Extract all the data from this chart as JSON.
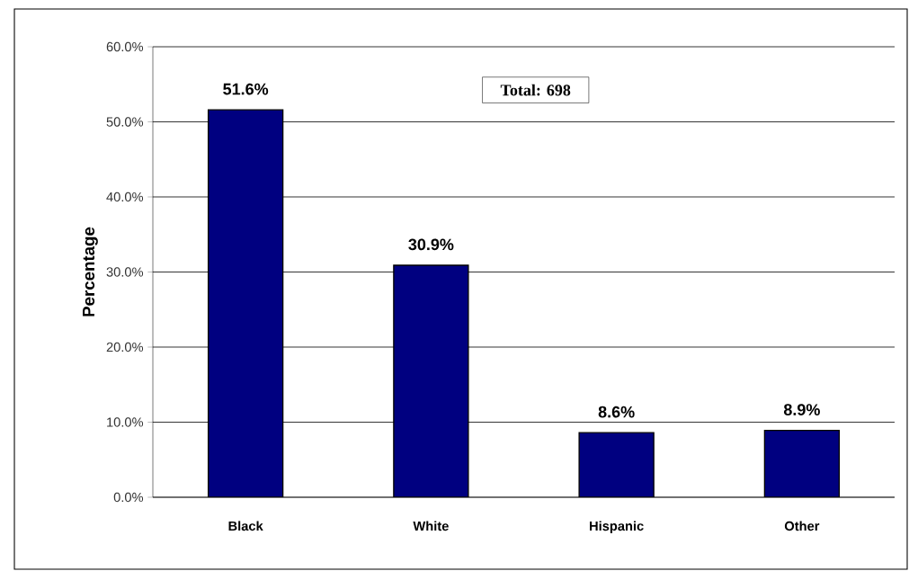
{
  "chart_data": {
    "type": "bar",
    "ylabel": "Percentage",
    "categories": [
      "Black",
      "White",
      "Hispanic",
      "Other"
    ],
    "values": [
      51.6,
      30.9,
      8.6,
      8.9
    ],
    "value_labels": [
      "51.6%",
      "30.9%",
      "8.6%",
      "8.9%"
    ],
    "color": "#000080",
    "ylim": [
      0,
      60
    ],
    "yticks": [
      {
        "value": 0,
        "label": "0.0%"
      },
      {
        "value": 10,
        "label": "10.0%"
      },
      {
        "value": 20,
        "label": "20.0%"
      },
      {
        "value": 30,
        "label": "30.0%"
      },
      {
        "value": 40,
        "label": "40.0%"
      },
      {
        "value": 50,
        "label": "50.0%"
      },
      {
        "value": 60,
        "label": "60.0%"
      }
    ],
    "grid": "y",
    "annotations": [
      "Total: 698"
    ]
  }
}
